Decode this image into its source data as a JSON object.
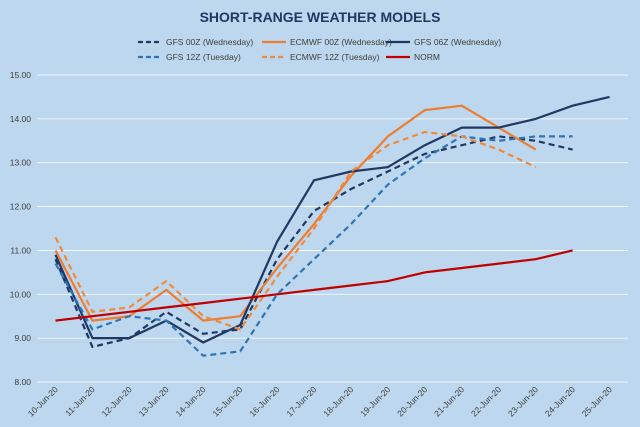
{
  "chart_data": {
    "type": "line",
    "title": "SHORT-RANGE WEATHER MODELS",
    "xlabel": "",
    "ylabel": "",
    "categories": [
      "10-Jun-20",
      "11-Jun-20",
      "12-Jun-20",
      "13-Jun-20",
      "14-Jun-20",
      "15-Jun-20",
      "16-Jun-20",
      "17-Jun-20",
      "18-Jun-20",
      "19-Jun-20",
      "20-Jun-20",
      "21-Jun-20",
      "22-Jun-20",
      "23-Jun-20",
      "24-Jun-20",
      "25-Jun-20"
    ],
    "ylim": [
      8.0,
      15.0
    ],
    "yticks": [
      "15.00",
      "14.00",
      "13.00",
      "12.00",
      "11.00",
      "10.00",
      "9.00",
      "8.00"
    ],
    "grid": "horizontal",
    "legend_position": "top",
    "series": [
      {
        "name": "GFS 00Z (Wednesday)",
        "color": "#1f3864",
        "dash": "dashed",
        "values": [
          10.8,
          8.8,
          9.0,
          9.6,
          9.1,
          9.2,
          10.8,
          11.9,
          12.4,
          12.8,
          13.2,
          13.4,
          13.6,
          13.5,
          13.3,
          null
        ]
      },
      {
        "name": "ECMWF 00Z (Wednesday)",
        "color": "#ed7d31",
        "dash": "solid",
        "values": [
          11.0,
          9.4,
          9.5,
          10.1,
          9.4,
          9.5,
          10.6,
          11.6,
          12.7,
          13.6,
          14.2,
          14.3,
          13.8,
          13.3,
          null,
          null
        ]
      },
      {
        "name": "GFS 06Z (Wednesday)",
        "color": "#203864",
        "dash": "solid",
        "values": [
          10.9,
          9.0,
          9.0,
          9.4,
          8.9,
          9.3,
          11.2,
          12.6,
          12.8,
          12.9,
          13.4,
          13.8,
          13.8,
          14.0,
          14.3,
          14.5
        ]
      },
      {
        "name": "GFS 12Z (Tuesday)",
        "color": "#2e75b6",
        "dash": "dashed",
        "values": [
          10.7,
          9.2,
          9.5,
          9.4,
          8.6,
          8.7,
          10.0,
          10.8,
          11.6,
          12.5,
          13.1,
          13.6,
          13.5,
          13.6,
          13.6,
          null
        ]
      },
      {
        "name": "ECMWF 12Z (Tuesday)",
        "color": "#f08a3c",
        "dash": "dashed",
        "values": [
          11.3,
          9.6,
          9.7,
          10.3,
          9.5,
          9.2,
          10.4,
          11.5,
          12.8,
          13.4,
          13.7,
          13.6,
          13.3,
          12.9,
          null,
          null
        ]
      },
      {
        "name": "NORM",
        "color": "#c00000",
        "dash": "solid",
        "values": [
          9.4,
          9.5,
          9.6,
          9.7,
          9.8,
          9.9,
          10.0,
          10.1,
          10.2,
          10.3,
          10.5,
          10.6,
          10.7,
          10.8,
          11.0,
          null
        ]
      }
    ]
  }
}
